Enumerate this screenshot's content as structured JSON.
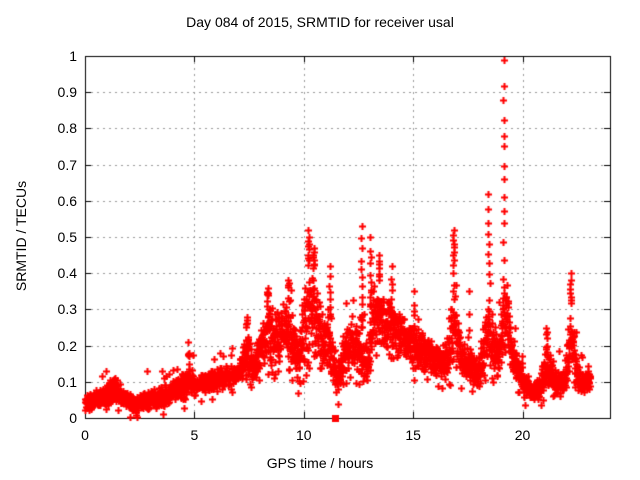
{
  "window": {
    "background": "#ffffff"
  },
  "chart_data": {
    "type": "scatter",
    "title": "Day 084 of 2015, SRMTID for receiver usal",
    "xlabel": "GPS time / hours",
    "ylabel": "SRMTID / TECUs",
    "xlim": [
      0,
      24
    ],
    "ylim": [
      0,
      1
    ],
    "xticks": [
      {
        "v": 0,
        "label": "0"
      },
      {
        "v": 5,
        "label": "5"
      },
      {
        "v": 10,
        "label": "10"
      },
      {
        "v": 15,
        "label": "15"
      },
      {
        "v": 20,
        "label": "20"
      }
    ],
    "yticks": [
      {
        "v": 0,
        "label": "0"
      },
      {
        "v": 0.1,
        "label": "0.1"
      },
      {
        "v": 0.2,
        "label": "0.2"
      },
      {
        "v": 0.3,
        "label": "0.3"
      },
      {
        "v": 0.4,
        "label": "0.4"
      },
      {
        "v": 0.5,
        "label": "0.5"
      },
      {
        "v": 0.6,
        "label": "0.6"
      },
      {
        "v": 0.7,
        "label": "0.7"
      },
      {
        "v": 0.8,
        "label": "0.8"
      },
      {
        "v": 0.9,
        "label": "0.9"
      },
      {
        "v": 1,
        "label": "1"
      }
    ],
    "grid": true,
    "legend": "none",
    "frame_color": "#000000",
    "grid_color": "#999999",
    "series": [
      {
        "name": "SRMTID",
        "marker": "plus",
        "color": "#ff0000",
        "data_start_hour": 0.0,
        "data_end_hour": 23.1,
        "band_envelope": [
          [
            0.0,
            0.02,
            0.07
          ],
          [
            0.5,
            0.02,
            0.08
          ],
          [
            1.0,
            0.03,
            0.1
          ],
          [
            1.35,
            0.04,
            0.12
          ],
          [
            1.7,
            0.03,
            0.09
          ],
          [
            2.2,
            0.01,
            0.06
          ],
          [
            2.6,
            0.02,
            0.07
          ],
          [
            3.0,
            0.02,
            0.09
          ],
          [
            3.5,
            0.03,
            0.09
          ],
          [
            4.0,
            0.04,
            0.11
          ],
          [
            4.6,
            0.05,
            0.14
          ],
          [
            4.75,
            0.06,
            0.17
          ],
          [
            5.0,
            0.06,
            0.12
          ],
          [
            5.5,
            0.07,
            0.13
          ],
          [
            6.0,
            0.07,
            0.14
          ],
          [
            6.5,
            0.08,
            0.15
          ],
          [
            7.0,
            0.09,
            0.16
          ],
          [
            7.4,
            0.1,
            0.25
          ],
          [
            7.7,
            0.1,
            0.18
          ],
          [
            8.0,
            0.12,
            0.25
          ],
          [
            8.3,
            0.14,
            0.34
          ],
          [
            8.7,
            0.13,
            0.31
          ],
          [
            9.0,
            0.14,
            0.33
          ],
          [
            9.3,
            0.15,
            0.36
          ],
          [
            9.7,
            0.08,
            0.26
          ],
          [
            10.1,
            0.12,
            0.4
          ],
          [
            10.3,
            0.15,
            0.44
          ],
          [
            10.6,
            0.14,
            0.38
          ],
          [
            10.9,
            0.11,
            0.3
          ],
          [
            11.1,
            0.1,
            0.32
          ],
          [
            11.5,
            0.05,
            0.16
          ],
          [
            11.9,
            0.11,
            0.28
          ],
          [
            12.2,
            0.13,
            0.3
          ],
          [
            12.5,
            0.1,
            0.28
          ],
          [
            12.9,
            0.07,
            0.22
          ],
          [
            13.2,
            0.2,
            0.4
          ],
          [
            13.5,
            0.19,
            0.37
          ],
          [
            13.9,
            0.17,
            0.33
          ],
          [
            14.2,
            0.16,
            0.32
          ],
          [
            14.6,
            0.15,
            0.28
          ],
          [
            15.0,
            0.13,
            0.28
          ],
          [
            15.5,
            0.12,
            0.24
          ],
          [
            16.0,
            0.11,
            0.22
          ],
          [
            16.5,
            0.1,
            0.22
          ],
          [
            16.85,
            0.12,
            0.42
          ],
          [
            17.2,
            0.1,
            0.22
          ],
          [
            17.6,
            0.09,
            0.2
          ],
          [
            18.0,
            0.08,
            0.18
          ],
          [
            18.45,
            0.1,
            0.38
          ],
          [
            18.8,
            0.1,
            0.24
          ],
          [
            19.0,
            0.12,
            0.3
          ],
          [
            19.2,
            0.15,
            0.48
          ],
          [
            19.5,
            0.12,
            0.24
          ],
          [
            19.8,
            0.09,
            0.18
          ],
          [
            20.1,
            0.05,
            0.13
          ],
          [
            20.5,
            0.04,
            0.1
          ],
          [
            20.8,
            0.05,
            0.12
          ],
          [
            21.1,
            0.07,
            0.22
          ],
          [
            21.5,
            0.05,
            0.14
          ],
          [
            21.9,
            0.06,
            0.14
          ],
          [
            22.1,
            0.09,
            0.25
          ],
          [
            22.25,
            0.1,
            0.35
          ],
          [
            22.5,
            0.07,
            0.15
          ],
          [
            22.8,
            0.06,
            0.13
          ],
          [
            23.1,
            0.08,
            0.14
          ]
        ],
        "spike_columns": [
          [
            4.75,
            0.18,
            4
          ],
          [
            7.4,
            0.28,
            5
          ],
          [
            8.35,
            0.36,
            4
          ],
          [
            9.3,
            0.38,
            4
          ],
          [
            10.2,
            0.52,
            10
          ],
          [
            10.45,
            0.47,
            8
          ],
          [
            11.2,
            0.42,
            7
          ],
          [
            12.65,
            0.53,
            11
          ],
          [
            13.05,
            0.5,
            9
          ],
          [
            13.45,
            0.45,
            7
          ],
          [
            14.0,
            0.42,
            5
          ],
          [
            15.05,
            0.35,
            4
          ],
          [
            16.85,
            0.52,
            9
          ],
          [
            17.55,
            0.35,
            4
          ],
          [
            18.45,
            0.62,
            8
          ],
          [
            19.15,
            0.99,
            13
          ],
          [
            21.1,
            0.25,
            4
          ],
          [
            22.2,
            0.4,
            7
          ]
        ]
      }
    ],
    "extra_point": {
      "x": 11.43,
      "y": 0.0,
      "marker": "filled-square",
      "color": "#ff0000"
    }
  }
}
